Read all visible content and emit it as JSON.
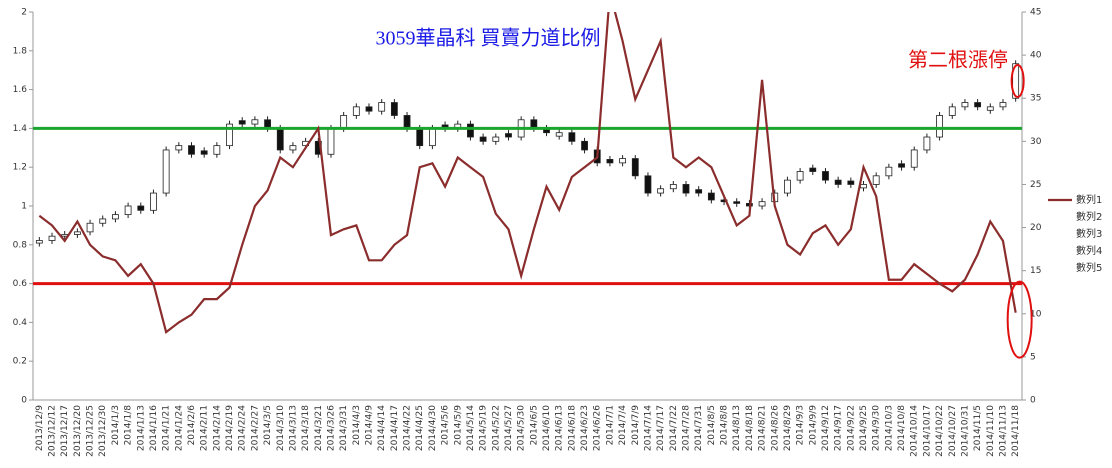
{
  "chart_data": {
    "type": "stock-combo",
    "title": "3059華晶科 買賣力道比例",
    "annotation": "第二根漲停",
    "categories": [
      "2013/12/9",
      "2013/12/12",
      "2013/12/17",
      "2013/12/20",
      "2013/12/25",
      "2013/12/30",
      "2014/1/3",
      "2014/1/8",
      "2014/1/13",
      "2014/1/16",
      "2014/1/21",
      "2014/1/24",
      "2014/2/6",
      "2014/2/11",
      "2014/2/14",
      "2014/2/19",
      "2014/2/24",
      "2014/2/27",
      "2014/3/5",
      "2014/3/10",
      "2014/3/13",
      "2014/3/18",
      "2014/3/21",
      "2014/3/26",
      "2014/3/31",
      "2014/4/3",
      "2014/4/9",
      "2014/4/14",
      "2014/4/17",
      "2014/4/22",
      "2014/4/25",
      "2014/4/30",
      "2014/5/6",
      "2014/5/9",
      "2014/5/14",
      "2014/5/19",
      "2014/5/22",
      "2014/5/27",
      "2014/5/30",
      "2014/6/5",
      "2014/6/10",
      "2014/6/13",
      "2014/6/18",
      "2014/6/23",
      "2014/6/26",
      "2014/7/1",
      "2014/7/4",
      "2014/7/9",
      "2014/7/14",
      "2014/7/17",
      "2014/7/22",
      "2014/7/28",
      "2014/7/31",
      "2014/8/5",
      "2014/8/8",
      "2014/8/13",
      "2014/8/18",
      "2014/8/21",
      "2014/8/26",
      "2014/8/29",
      "2014/9/3",
      "2014/9/9",
      "2014/9/12",
      "2014/9/17",
      "2014/9/22",
      "2014/9/25",
      "2014/9/30",
      "2014/10/3",
      "2014/10/8",
      "2014/10/14",
      "2014/10/17",
      "2014/10/22",
      "2014/10/27",
      "2014/10/31",
      "2014/11/5",
      "2014/11/10",
      "2014/11/13",
      "2014/11/18"
    ],
    "series": [
      {
        "name": "數列1",
        "color": "#8b2d2d",
        "values": [
          0.95,
          0.9,
          0.82,
          0.92,
          0.8,
          0.74,
          0.72,
          0.64,
          0.7,
          0.6,
          0.35,
          0.4,
          0.44,
          0.52,
          0.52,
          0.58,
          0.8,
          1.0,
          1.08,
          1.25,
          1.2,
          1.3,
          1.4,
          0.85,
          0.88,
          0.9,
          0.72,
          0.72,
          0.8,
          0.85,
          1.2,
          1.22,
          1.1,
          1.25,
          1.2,
          1.15,
          0.96,
          0.88,
          0.64,
          0.88,
          1.1,
          0.98,
          1.15,
          1.2,
          1.25,
          2.1,
          1.85,
          1.55,
          1.7,
          1.85,
          1.25,
          1.2,
          1.25,
          1.2,
          1.05,
          0.9,
          0.95,
          1.65,
          1.0,
          0.8,
          0.75,
          0.86,
          0.9,
          0.8,
          0.88,
          1.2,
          1.05,
          0.62,
          0.62,
          0.7,
          0.65,
          0.6,
          0.56,
          0.62,
          0.75,
          0.92,
          0.82,
          0.45
        ]
      },
      {
        "name": "數列2",
        "axis": "y2",
        "values": [
          18.2,
          18.5,
          19,
          19.2,
          19.5,
          20.5,
          21,
          21.5,
          22.5,
          22,
          24,
          29,
          29.5,
          28.9,
          28.5,
          29.5,
          32.4,
          32,
          32.5,
          31.5,
          29,
          29.5,
          30,
          28.5,
          31.5,
          33,
          34,
          33.5,
          34.5,
          33,
          31.5,
          29.5,
          31.9,
          31.5,
          32,
          30.5,
          30,
          30.9,
          30.5,
          32.5,
          31.5,
          30.6,
          31,
          30,
          29,
          27.9,
          27.5,
          28,
          26,
          24,
          24.5,
          25,
          24.4,
          24,
          23.2,
          23,
          22.8,
          22.5,
          23,
          24,
          25.5,
          26.9,
          26.5,
          25.5,
          25.4,
          24.6,
          25,
          26,
          27.4,
          27,
          29,
          30.5,
          33,
          34,
          34.5,
          33.6,
          34,
          35
        ]
      },
      {
        "name": "數列3",
        "axis": "y2",
        "values": [
          18.9,
          19.4,
          19.6,
          19.9,
          20.9,
          21.4,
          21.9,
          22.9,
          22.9,
          24.4,
          29.4,
          29.9,
          29.9,
          29.3,
          29.9,
          32.4,
          32.8,
          32.9,
          32.9,
          31.9,
          29.9,
          30.4,
          30.4,
          31.9,
          33.4,
          34.4,
          34.4,
          34.9,
          34.9,
          33.4,
          31.9,
          31.9,
          32.3,
          32.4,
          32.4,
          30.9,
          30.9,
          31.3,
          32.9,
          32.9,
          31.9,
          31.4,
          31.4,
          30.4,
          29.4,
          28.3,
          28.4,
          28.4,
          26.4,
          24.9,
          25.4,
          25.4,
          24.8,
          24.4,
          23.6,
          23.4,
          23.2,
          23.4,
          24.4,
          25.9,
          26.9,
          27.3,
          26.9,
          25.9,
          25.8,
          25.4,
          26.4,
          27.4,
          27.8,
          29.4,
          30.9,
          33.4,
          34.4,
          34.9,
          34.9,
          34.4,
          34.9,
          39.4
        ]
      },
      {
        "name": "數列4",
        "axis": "y2",
        "values": [
          17.8,
          18.1,
          18.6,
          18.8,
          19.1,
          20.1,
          20.6,
          21.1,
          21.6,
          21.6,
          23.6,
          28.6,
          28.1,
          28.1,
          28.1,
          29.1,
          31.6,
          31.6,
          31.1,
          28.6,
          28.6,
          29.1,
          28.1,
          28.1,
          31.1,
          32.6,
          33.1,
          33.1,
          32.6,
          31.1,
          29.1,
          29.1,
          31.1,
          31.1,
          30.1,
          29.6,
          29.6,
          30.1,
          30.1,
          31.1,
          30.6,
          30.2,
          29.6,
          28.6,
          27.1,
          27.1,
          27.1,
          25.6,
          23.6,
          23.6,
          24.1,
          23.6,
          23.6,
          22.8,
          22.6,
          22.4,
          22.1,
          22.1,
          22.6,
          23.6,
          25.1,
          26.1,
          25.1,
          24.6,
          24.6,
          24.2,
          24.6,
          25.6,
          26.6,
          26.6,
          28.6,
          30.1,
          32.6,
          33.6,
          33.6,
          33.2,
          33.6,
          34.6
        ]
      },
      {
        "name": "數列5",
        "axis": "y2",
        "values": [
          18.5,
          19,
          19.2,
          19.5,
          20.5,
          21,
          21.5,
          22.5,
          22,
          24,
          29,
          29.5,
          28.5,
          28.5,
          29.5,
          32,
          32,
          32.5,
          31.5,
          29,
          29.5,
          30,
          28.5,
          31.5,
          33,
          34,
          33.5,
          34.5,
          33,
          31.5,
          29.5,
          31.5,
          31.5,
          32,
          30.5,
          30,
          30.5,
          30.5,
          32.5,
          31.5,
          31,
          31,
          30,
          29,
          27.5,
          27.5,
          28,
          26,
          24,
          24.5,
          25,
          24,
          24,
          23.2,
          23,
          22.8,
          22.5,
          23,
          24,
          25.5,
          26.5,
          26.5,
          25.5,
          25,
          25,
          25,
          26,
          27,
          27,
          29,
          30.5,
          33,
          34,
          34.5,
          34,
          34,
          34.5,
          39
        ]
      }
    ],
    "reference_lines": [
      {
        "value": 1.4,
        "color": "#1aa62e"
      },
      {
        "value": 0.6,
        "color": "#e01010"
      }
    ],
    "ylim": [
      0,
      2
    ],
    "yticks": [
      0,
      0.2,
      0.4,
      0.6,
      0.8,
      1,
      1.2,
      1.4,
      1.6,
      1.8,
      2
    ],
    "y2lim": [
      0,
      45
    ],
    "y2ticks": [
      0,
      5,
      10,
      15,
      20,
      25,
      30,
      35,
      40,
      45
    ],
    "legend_position": "right"
  }
}
